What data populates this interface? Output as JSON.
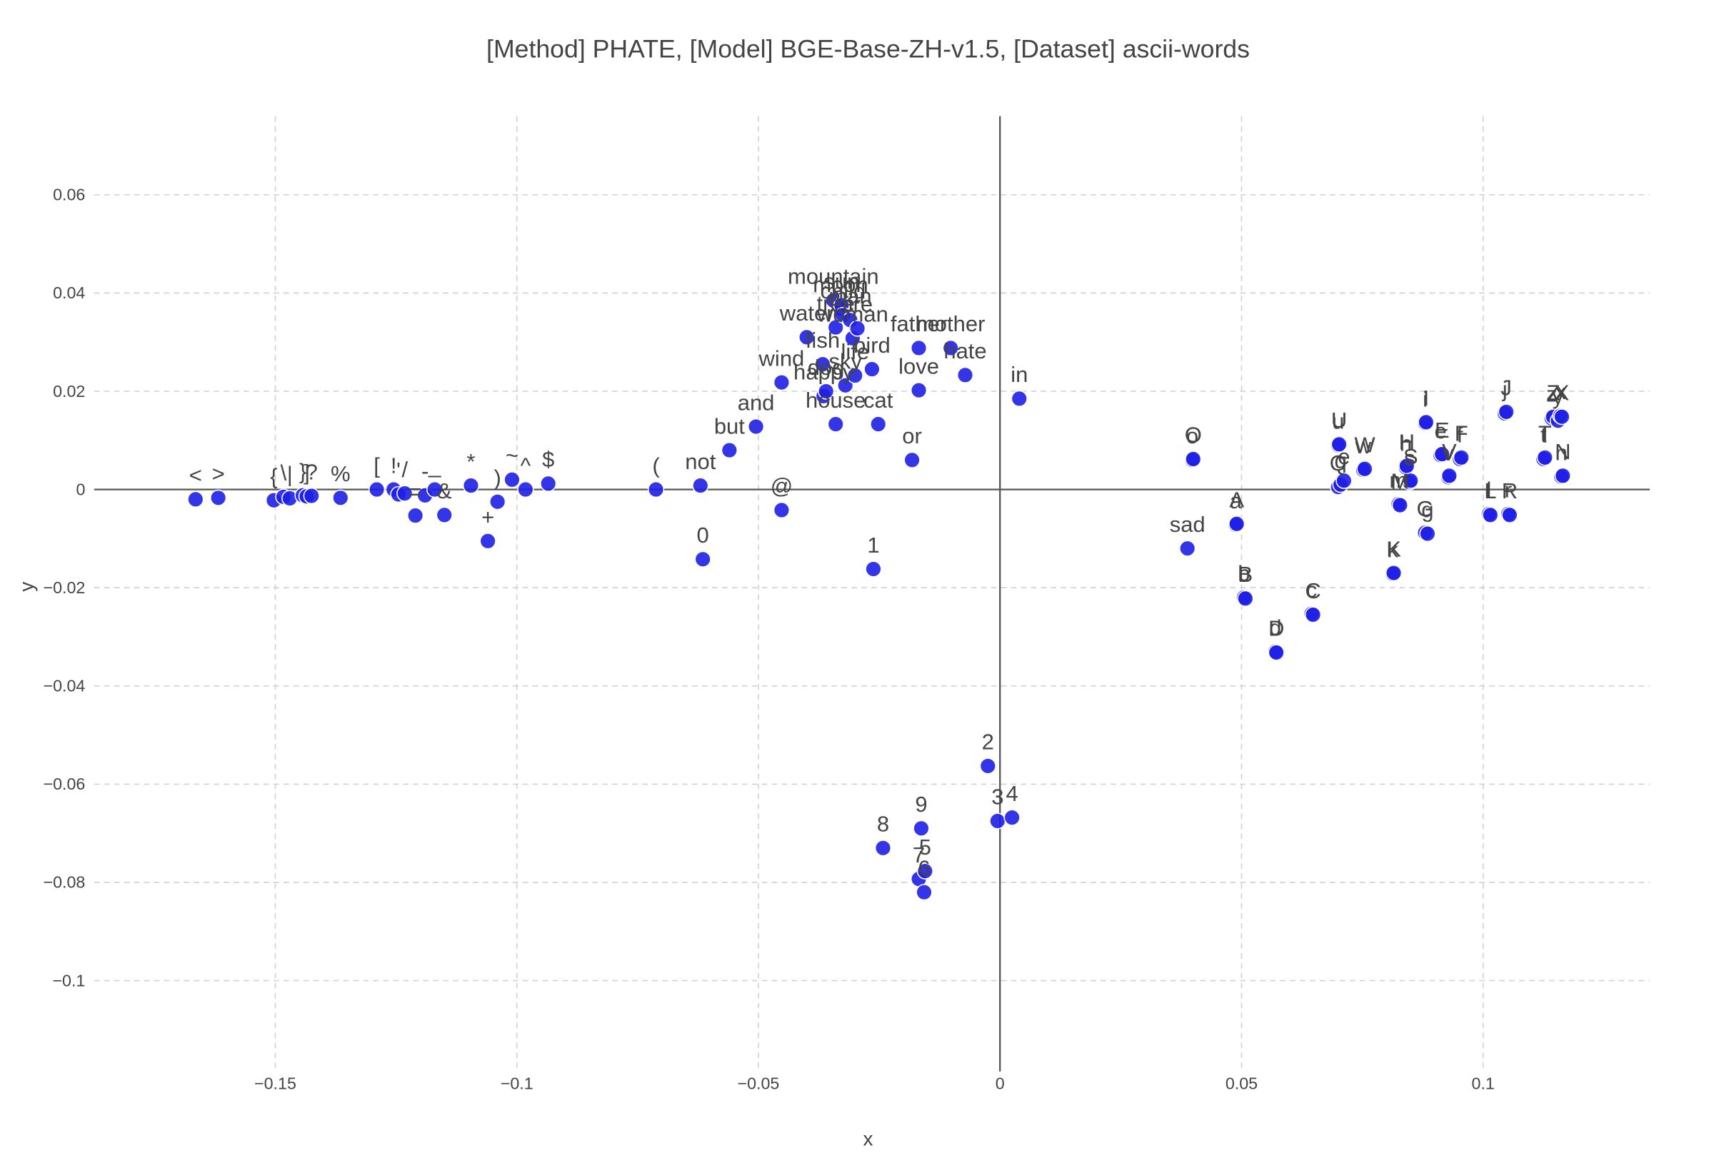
{
  "chart_data": {
    "type": "scatter",
    "title": "[Method] PHATE, [Model] BGE-Base-ZH-v1.5, [Dataset] ascii-words",
    "xlabel": "x",
    "ylabel": "y",
    "xlim": [
      -0.1875,
      0.1345
    ],
    "ylim": [
      -0.1185,
      0.076
    ],
    "xticks": [
      -0.15,
      -0.1,
      -0.05,
      0,
      0.05,
      0.1
    ],
    "yticks": [
      0.06,
      0.04,
      0.02,
      0,
      -0.02,
      -0.04,
      -0.06,
      -0.08,
      -0.1
    ],
    "xtick_labels": [
      "−0.15",
      "−0.1",
      "−0.05",
      "0",
      "0.05",
      "0.1"
    ],
    "ytick_labels": [
      "0.06",
      "0.04",
      "0.02",
      "0",
      "−0.02",
      "−0.04",
      "−0.06",
      "−0.08",
      "−0.1"
    ],
    "grid": true,
    "zero_lines": true,
    "marker_color": "#1f1fe6",
    "marker_edge_color": "#ffffff",
    "points": [
      {
        "label": "<",
        "x": -0.1665,
        "y": -0.002
      },
      {
        "label": ">",
        "x": -0.1618,
        "y": -0.0017
      },
      {
        "label": "{",
        "x": -0.1503,
        "y": -0.0022
      },
      {
        "label": "\\",
        "x": -0.1483,
        "y": -0.0015
      },
      {
        "label": "|",
        "x": -0.147,
        "y": -0.0018
      },
      {
        "label": "}",
        "x": -0.1443,
        "y": -0.0012
      },
      {
        "label": "]",
        "x": -0.1435,
        "y": -0.0014
      },
      {
        "label": "?",
        "x": -0.1425,
        "y": -0.0013
      },
      {
        "label": "%",
        "x": -0.1365,
        "y": -0.0017
      },
      {
        "label": "[",
        "x": -0.129,
        "y": 0.0
      },
      {
        "label": "!",
        "x": -0.1255,
        "y": 0.0
      },
      {
        "label": "'",
        "x": -0.1245,
        "y": -0.001
      },
      {
        "label": "/",
        "x": -0.1232,
        "y": -0.0008
      },
      {
        "label": "=",
        "x": -0.121,
        "y": -0.0053
      },
      {
        "label": "-",
        "x": -0.119,
        "y": -0.0012
      },
      {
        "label": "_",
        "x": -0.117,
        "y": 0.0
      },
      {
        "label": "&",
        "x": -0.115,
        "y": -0.0052
      },
      {
        "label": "*",
        "x": -0.1095,
        "y": 0.0008
      },
      {
        "label": "+",
        "x": -0.106,
        "y": -0.0105
      },
      {
        "label": ")",
        "x": -0.104,
        "y": -0.0025
      },
      {
        "label": "~",
        "x": -0.101,
        "y": 0.002
      },
      {
        "label": "^",
        "x": -0.0982,
        "y": 0.0
      },
      {
        "label": "$",
        "x": -0.0935,
        "y": 0.0012
      },
      {
        "label": "(",
        "x": -0.0712,
        "y": 0.0
      },
      {
        "label": "not",
        "x": -0.062,
        "y": 0.0008
      },
      {
        "label": "0",
        "x": -0.0615,
        "y": -0.0142
      },
      {
        "label": "but",
        "x": -0.056,
        "y": 0.008
      },
      {
        "label": "and",
        "x": -0.0505,
        "y": 0.0128
      },
      {
        "label": "@",
        "x": -0.0452,
        "y": -0.0042
      },
      {
        "label": "wind",
        "x": -0.0452,
        "y": 0.0218
      },
      {
        "label": "water",
        "x": -0.04,
        "y": 0.031
      },
      {
        "label": "fish",
        "x": -0.0367,
        "y": 0.0255
      },
      {
        "label": "happy",
        "x": -0.0365,
        "y": 0.019
      },
      {
        "label": "dog",
        "x": -0.036,
        "y": 0.02
      },
      {
        "label": "tree",
        "x": -0.034,
        "y": 0.033
      },
      {
        "label": "house",
        "x": -0.034,
        "y": 0.0133
      },
      {
        "label": "mountain",
        "x": -0.0345,
        "y": 0.0385
      },
      {
        "label": "moon",
        "x": -0.033,
        "y": 0.0368
      },
      {
        "label": "sun",
        "x": -0.0328,
        "y": 0.0375
      },
      {
        "label": "child",
        "x": -0.0325,
        "y": 0.0355
      },
      {
        "label": "sky",
        "x": -0.032,
        "y": 0.0212
      },
      {
        "label": "man",
        "x": -0.031,
        "y": 0.0345
      },
      {
        "label": "woman",
        "x": -0.0305,
        "y": 0.0308
      },
      {
        "label": "life",
        "x": -0.03,
        "y": 0.0232
      },
      {
        "label": "fire",
        "x": -0.0295,
        "y": 0.0328
      },
      {
        "label": "bird",
        "x": -0.0265,
        "y": 0.0245
      },
      {
        "label": "cat",
        "x": -0.0252,
        "y": 0.0133
      },
      {
        "label": "1",
        "x": -0.0262,
        "y": -0.0162
      },
      {
        "label": "8",
        "x": -0.0242,
        "y": -0.073
      },
      {
        "label": "or",
        "x": -0.0182,
        "y": 0.006
      },
      {
        "label": "9",
        "x": -0.0163,
        "y": -0.069
      },
      {
        "label": "father",
        "x": -0.0168,
        "y": 0.0288
      },
      {
        "label": "love",
        "x": -0.0168,
        "y": 0.0202
      },
      {
        "label": "7",
        "x": -0.0168,
        "y": -0.0793
      },
      {
        "label": "5",
        "x": -0.0155,
        "y": -0.0777
      },
      {
        "label": "6",
        "x": -0.0157,
        "y": -0.082
      },
      {
        "label": "mother",
        "x": -0.0102,
        "y": 0.0288
      },
      {
        "label": "hate",
        "x": -0.0072,
        "y": 0.0233
      },
      {
        "label": "2",
        "x": -0.0025,
        "y": -0.0563
      },
      {
        "label": "3",
        "x": -0.0005,
        "y": -0.0675
      },
      {
        "label": "4",
        "x": 0.0025,
        "y": -0.0668
      },
      {
        "label": "in",
        "x": 0.004,
        "y": 0.0185
      },
      {
        "label": "sad",
        "x": 0.0388,
        "y": -0.012
      },
      {
        "label": "o",
        "x": 0.0398,
        "y": 0.006
      },
      {
        "label": "O",
        "x": 0.04,
        "y": 0.0062
      },
      {
        "label": "a",
        "x": 0.0488,
        "y": -0.0072
      },
      {
        "label": "A",
        "x": 0.049,
        "y": -0.007
      },
      {
        "label": "b",
        "x": 0.0505,
        "y": -0.022
      },
      {
        "label": "B",
        "x": 0.0508,
        "y": -0.0222
      },
      {
        "label": "d",
        "x": 0.057,
        "y": -0.033
      },
      {
        "label": "D",
        "x": 0.0572,
        "y": -0.0332
      },
      {
        "label": "c",
        "x": 0.0645,
        "y": -0.0253
      },
      {
        "label": "C",
        "x": 0.0648,
        "y": -0.0255
      },
      {
        "label": "u",
        "x": 0.07,
        "y": 0.009
      },
      {
        "label": "U",
        "x": 0.0702,
        "y": 0.0092
      },
      {
        "label": "Q",
        "x": 0.07,
        "y": 0.0005
      },
      {
        "label": "q",
        "x": 0.0705,
        "y": 0.001
      },
      {
        "label": "e",
        "x": 0.0712,
        "y": 0.0018
      },
      {
        "label": "w",
        "x": 0.0752,
        "y": 0.004
      },
      {
        "label": "W",
        "x": 0.0755,
        "y": 0.0042
      },
      {
        "label": "k",
        "x": 0.0813,
        "y": -0.0172
      },
      {
        "label": "K",
        "x": 0.0815,
        "y": -0.017
      },
      {
        "label": "m",
        "x": 0.0825,
        "y": -0.003
      },
      {
        "label": "M",
        "x": 0.0828,
        "y": -0.0032
      },
      {
        "label": "h",
        "x": 0.084,
        "y": 0.0045
      },
      {
        "label": "H",
        "x": 0.0842,
        "y": 0.0048
      },
      {
        "label": "s",
        "x": 0.0848,
        "y": 0.0015
      },
      {
        "label": "S",
        "x": 0.085,
        "y": 0.0018
      },
      {
        "label": "i",
        "x": 0.088,
        "y": 0.0135
      },
      {
        "label": "I",
        "x": 0.0882,
        "y": 0.0137
      },
      {
        "label": "G",
        "x": 0.088,
        "y": -0.0088
      },
      {
        "label": "g",
        "x": 0.0885,
        "y": -0.009
      },
      {
        "label": "e",
        "x": 0.0912,
        "y": 0.007
      },
      {
        "label": "E",
        "x": 0.0915,
        "y": 0.0072
      },
      {
        "label": "v",
        "x": 0.0928,
        "y": 0.0025
      },
      {
        "label": "V",
        "x": 0.093,
        "y": 0.0028
      },
      {
        "label": "f",
        "x": 0.0952,
        "y": 0.0062
      },
      {
        "label": "F",
        "x": 0.0955,
        "y": 0.0065
      },
      {
        "label": "l",
        "x": 0.1012,
        "y": -0.005
      },
      {
        "label": "L",
        "x": 0.1015,
        "y": -0.0052
      },
      {
        "label": "r",
        "x": 0.1052,
        "y": -0.005
      },
      {
        "label": "R",
        "x": 0.1055,
        "y": -0.0052
      },
      {
        "label": "j",
        "x": 0.1045,
        "y": 0.0155
      },
      {
        "label": "J",
        "x": 0.1048,
        "y": 0.0158
      },
      {
        "label": "t",
        "x": 0.1125,
        "y": 0.0062
      },
      {
        "label": "T",
        "x": 0.1128,
        "y": 0.0065
      },
      {
        "label": "z",
        "x": 0.1142,
        "y": 0.0145
      },
      {
        "label": "Z",
        "x": 0.1145,
        "y": 0.0148
      },
      {
        "label": "y",
        "x": 0.1155,
        "y": 0.014
      },
      {
        "label": "x",
        "x": 0.116,
        "y": 0.015
      },
      {
        "label": "X",
        "x": 0.1163,
        "y": 0.0148
      },
      {
        "label": "n",
        "x": 0.1162,
        "y": 0.0026
      },
      {
        "label": "N",
        "x": 0.1165,
        "y": 0.0028
      }
    ]
  }
}
